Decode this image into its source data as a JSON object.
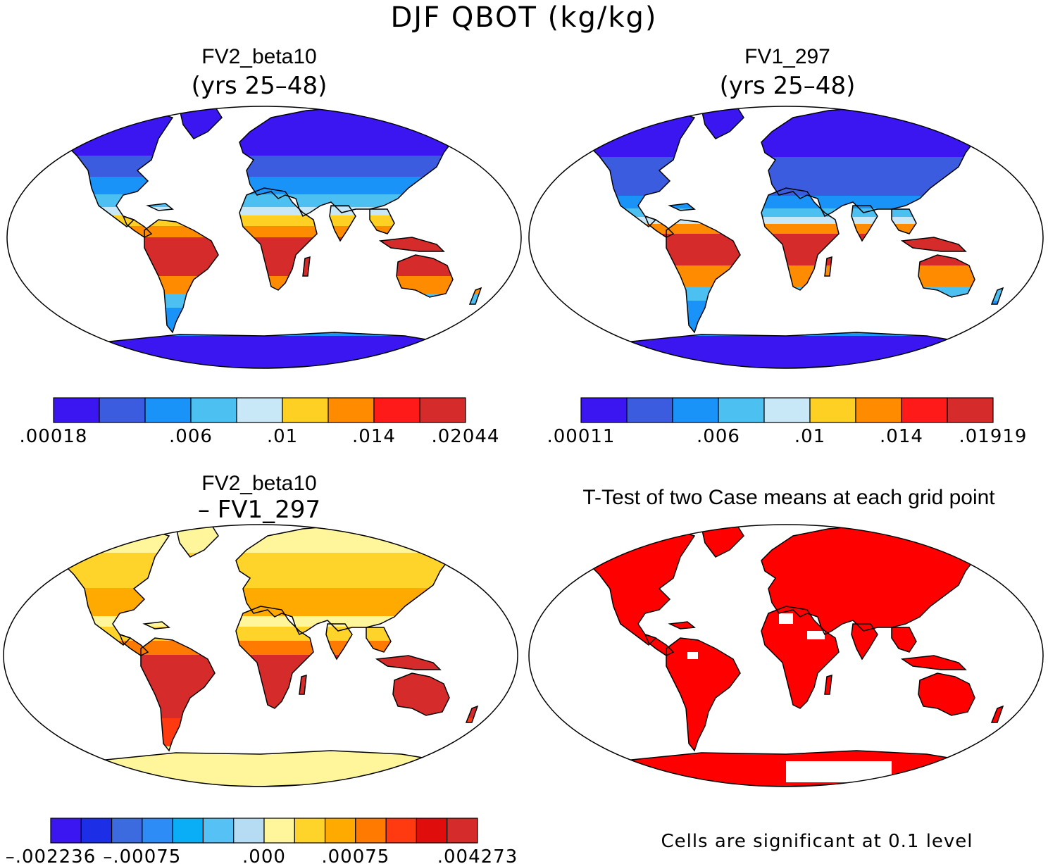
{
  "title": "DJF QBOT (kg/kg)",
  "colors": {
    "ocean": "#ffffff",
    "border": "#000000",
    "signif": "#ff0000"
  },
  "panels": [
    {
      "title": "FV2_beta10",
      "subtitle": "(yrs 25–48)",
      "colorbar": {
        "colors": [
          "#3b16f0",
          "#3c5ce0",
          "#1993f7",
          "#4dc0f2",
          "#c8e8f8",
          "#ffd024",
          "#ff8c00",
          "#ff1a1a",
          "#d62b2b"
        ],
        "labels": [
          ".00018",
          ".006",
          ".01",
          ".014",
          ".02044"
        ]
      }
    },
    {
      "title": "FV1_297",
      "subtitle": "(yrs 25–48)",
      "colorbar": {
        "colors": [
          "#3b16f0",
          "#3c5ce0",
          "#1993f7",
          "#4dc0f2",
          "#c8e8f8",
          "#ffd024",
          "#ff8c00",
          "#ff1a1a",
          "#d62b2b"
        ],
        "labels": [
          ".00011",
          ".006",
          ".01",
          ".014",
          ".01919"
        ]
      }
    },
    {
      "title": "FV2_beta10",
      "subtitle": "– FV1_297",
      "colorbar": {
        "colors": [
          "#3b16f0",
          "#1c2fe6",
          "#3c6be0",
          "#2e8cf6",
          "#0aaef6",
          "#56c1f4",
          "#b5dcf2",
          "#fff59a",
          "#ffd42a",
          "#ffaa00",
          "#ff7a00",
          "#ff3a10",
          "#e00d0d",
          "#d62b2b"
        ],
        "labels": [
          "–.002236",
          "–.00075",
          ".000",
          ".00075",
          ".004273"
        ]
      }
    },
    {
      "title": "T-Test of two Case means at each grid point",
      "note": "Cells are significant at 0.1 level"
    }
  ]
}
